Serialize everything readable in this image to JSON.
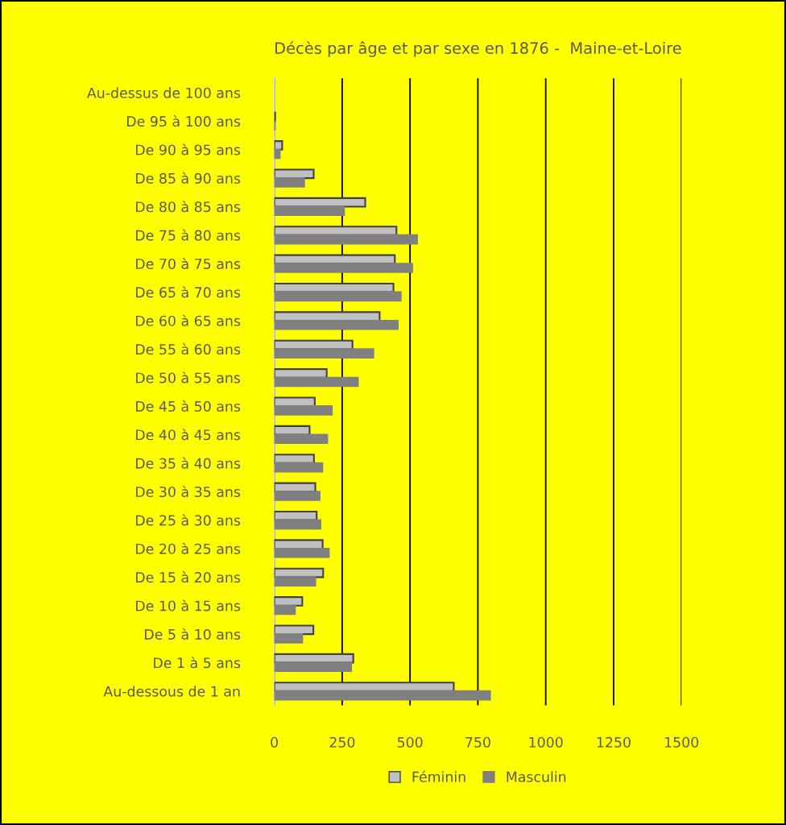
{
  "chart_data": {
    "type": "bar",
    "orientation": "horizontal",
    "title": "Décès par âge et par sexe en 1876 -  Maine-et-Loire",
    "categories": [
      "Au-dessus de 100 ans",
      "De 95 à 100 ans",
      "De 90 à 95 ans",
      "De 85 à 90 ans",
      "De 80 à 85 ans",
      "De 75 à 80 ans",
      "De 70 à 75 ans",
      "De 65 à 70 ans",
      "De 60 à 65 ans",
      "De 55 à 60 ans",
      "De 50 à 55 ans",
      "De 45 à 50 ans",
      "De 40 à 45 ans",
      "De 35 à 40 ans",
      "De 30 à 35 ans",
      "De 25 à 30 ans",
      "De 20 à 25 ans",
      "De 15 à 20 ans",
      "De 10 à 15 ans",
      "De 5 à 10 ans",
      "De 1 à 5 ans",
      "Au-dessous de 1 an"
    ],
    "series": [
      {
        "name": "Féminin",
        "color": "#c0c0c0",
        "values": [
          0,
          3,
          29,
          145,
          335,
          450,
          444,
          439,
          388,
          288,
          193,
          149,
          130,
          146,
          151,
          156,
          178,
          180,
          103,
          144,
          291,
          661
        ]
      },
      {
        "name": "Masculin",
        "color": "#808080",
        "values": [
          0,
          2,
          20,
          110,
          257,
          526,
          508,
          466,
          455,
          365,
          308,
          212,
          195,
          177,
          167,
          170,
          201,
          151,
          76,
          103,
          283,
          795
        ]
      }
    ],
    "xlim": [
      0,
      1500
    ],
    "xticks": [
      0,
      250,
      500,
      750,
      1000,
      1250,
      1500
    ],
    "grid": "x",
    "legend": "bottom"
  }
}
